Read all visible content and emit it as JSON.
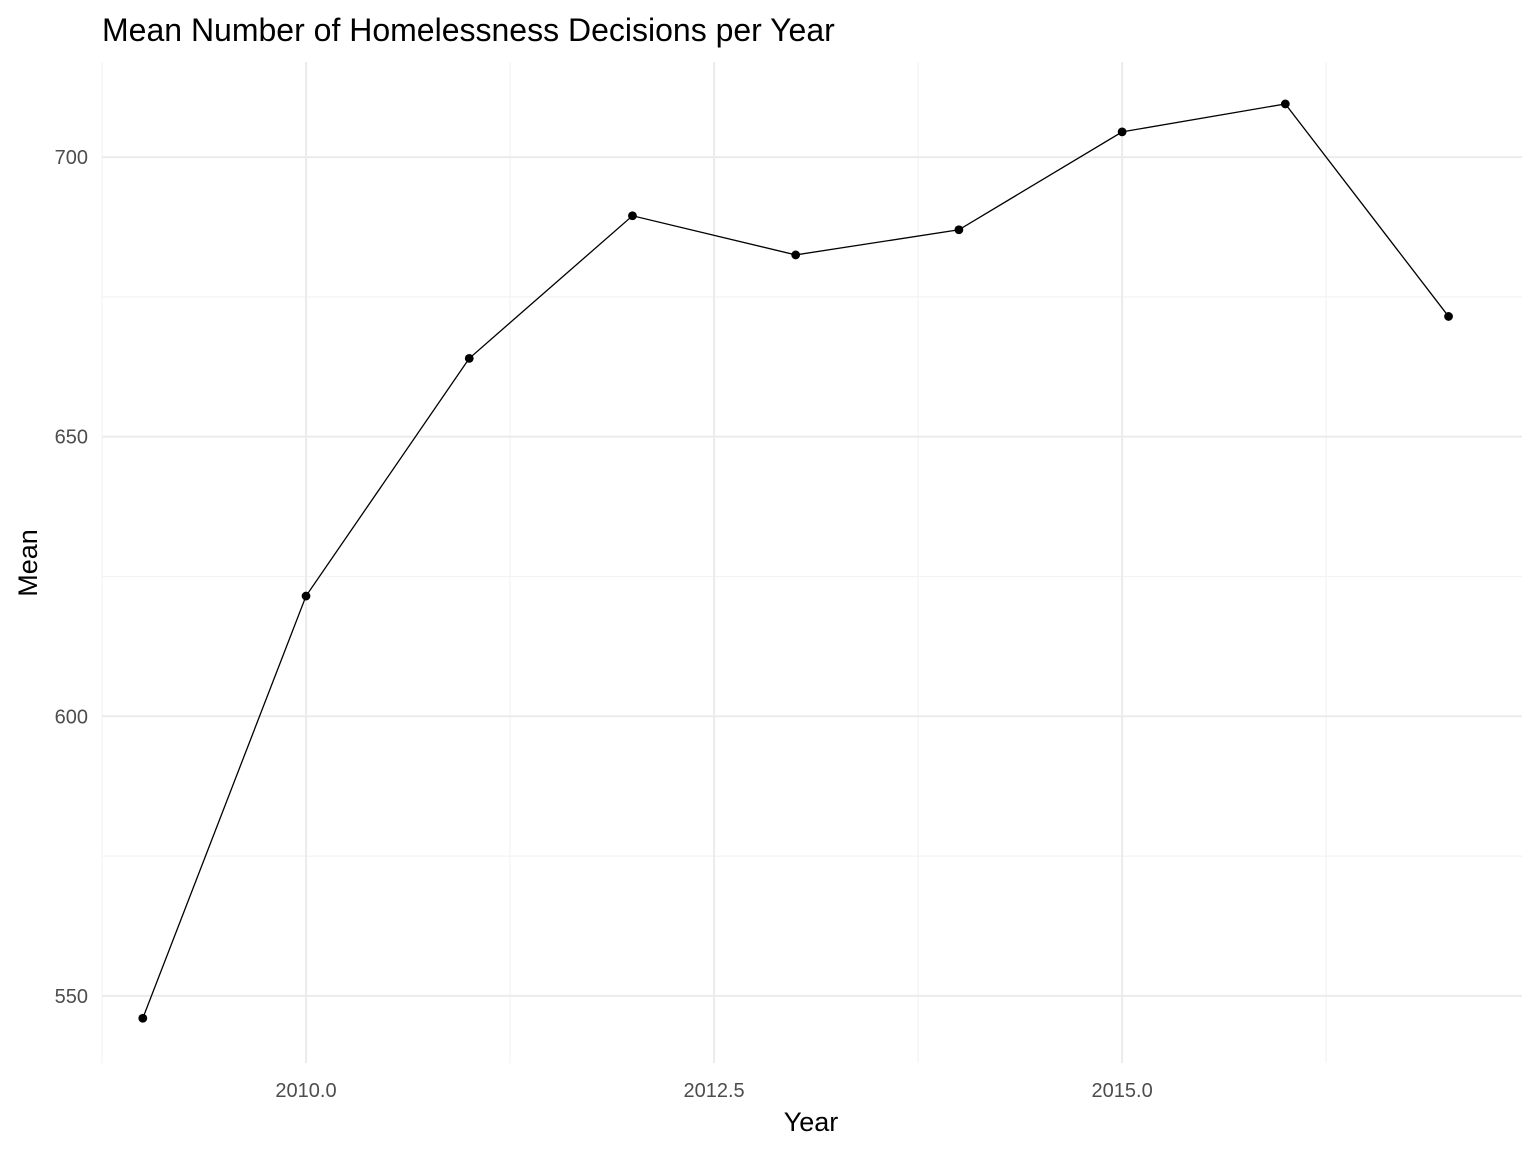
{
  "chart_data": {
    "type": "line",
    "title": "Mean Number of Homelessness Decisions per Year",
    "xlabel": "Year",
    "ylabel": "Mean",
    "x_ticks": [
      "2010.0",
      "2012.5",
      "2015.0"
    ],
    "y_ticks": [
      "550",
      "600",
      "650",
      "700"
    ],
    "xlim": [
      2008.75,
      2017.45
    ],
    "ylim": [
      538,
      717
    ],
    "grid": true,
    "legend": "none",
    "line_color": "#000000",
    "series": [
      {
        "x": [
          2009,
          2010,
          2011,
          2012,
          2013,
          2014,
          2015,
          2016,
          2017
        ],
        "values": [
          546,
          621.5,
          664,
          689.5,
          682.5,
          687,
          704.5,
          709.5,
          671.5
        ]
      }
    ]
  }
}
